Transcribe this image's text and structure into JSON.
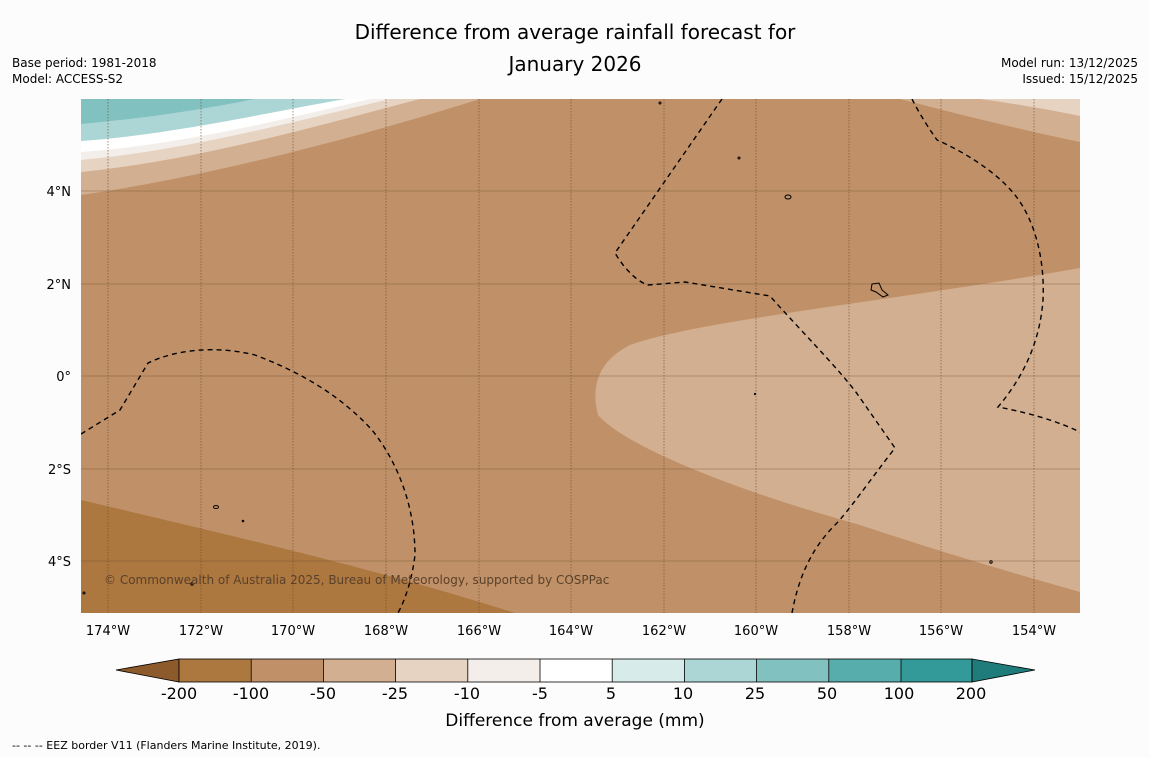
{
  "title_line1": "Difference from average rainfall forecast for",
  "title_line2": "January 2026",
  "base_period": "Base period: 1981-2018",
  "model": "Model: ACCESS-S2",
  "model_run": "Model run: 13/12/2025",
  "issued": "Issued: 15/12/2025",
  "copyright": "© Commonwealth of Australia 2025, Bureau of Meteorology, supported by COSPPac",
  "footnote": "--  --  -- EEZ border V11 (Flanders Marine Institute, 2019).",
  "lon_labels": [
    "174°W",
    "172°W",
    "170°W",
    "168°W",
    "166°W",
    "164°W",
    "162°W",
    "160°W",
    "158°W",
    "156°W",
    "154°W"
  ],
  "lat_labels": [
    "4°N",
    "2°N",
    "0°",
    "2°S",
    "4°S"
  ],
  "colorbar": {
    "title": "Difference from average (mm)",
    "tick_labels": [
      "-200",
      "-100",
      "-50",
      "-25",
      "-10",
      "-5",
      "5",
      "10",
      "25",
      "50",
      "100",
      "200"
    ],
    "colors": [
      "#8c5a2b",
      "#ad7740",
      "#c09168",
      "#d2af90",
      "#e6d3c2",
      "#f3eee9",
      "#ffffff",
      "#d6ebea",
      "#acd6d5",
      "#81c1c0",
      "#57acac",
      "#339a99",
      "#207b7b"
    ]
  }
}
